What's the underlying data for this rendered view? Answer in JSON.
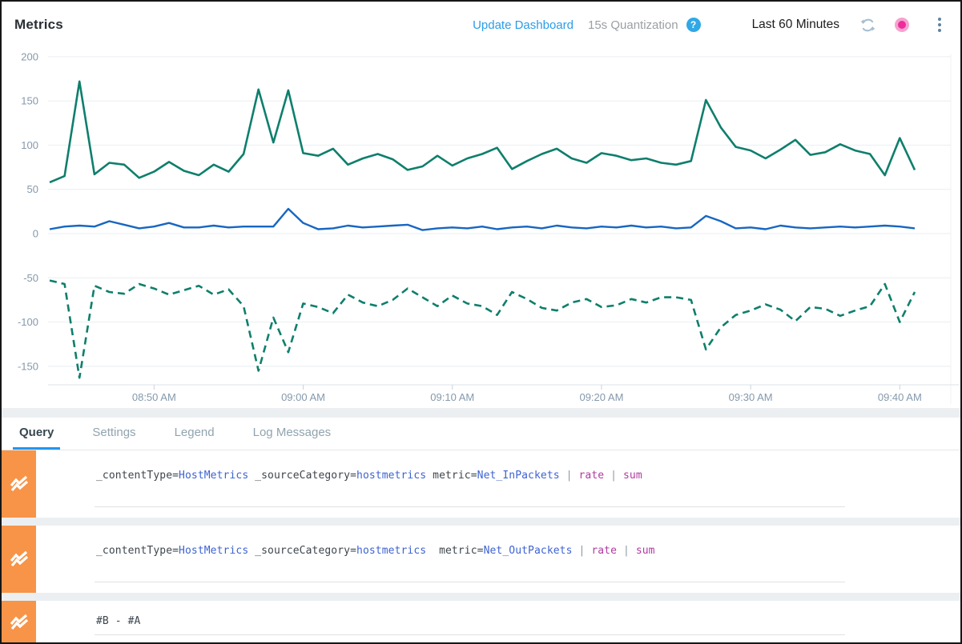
{
  "header": {
    "title": "Metrics",
    "update_dashboard": "Update Dashboard",
    "quantization": "15s Quantization",
    "help_icon": "question-mark-in-circle",
    "time_range": "Last 60 Minutes",
    "refresh_icon": "circular-refresh-arrows",
    "live_dot_icon": "pink-status-dot",
    "more_menu_icon": "vertical-kebab-dots",
    "colors": {
      "link_blue": "#2b9ce8",
      "help_blue": "#30a8e6",
      "live_pink": "#ec2d9a",
      "live_pink_ring": "#f6a2d0"
    }
  },
  "tabs": [
    {
      "label": "Query",
      "active": true
    },
    {
      "label": "Settings",
      "active": false
    },
    {
      "label": "Legend",
      "active": false
    },
    {
      "label": "Log Messages",
      "active": false
    }
  ],
  "queries": [
    {
      "icon": "metrics-zigzag",
      "icon_bg": "#f79448",
      "segments": [
        {
          "t": "_contentType=",
          "c": "plain"
        },
        {
          "t": "HostMetrics",
          "c": "value"
        },
        {
          "t": " _sourceCategory=",
          "c": "plain"
        },
        {
          "t": "hostmetrics",
          "c": "value"
        },
        {
          "t": " metric=",
          "c": "plain"
        },
        {
          "t": "Net_InPackets",
          "c": "value"
        },
        {
          "t": " | ",
          "c": "pipe"
        },
        {
          "t": "rate",
          "c": "op"
        },
        {
          "t": " | ",
          "c": "pipe"
        },
        {
          "t": "sum",
          "c": "op"
        }
      ]
    },
    {
      "icon": "metrics-zigzag",
      "icon_bg": "#f79448",
      "segments": [
        {
          "t": "_contentType=",
          "c": "plain"
        },
        {
          "t": "HostMetrics",
          "c": "value"
        },
        {
          "t": " _sourceCategory=",
          "c": "plain"
        },
        {
          "t": "hostmetrics",
          "c": "value"
        },
        {
          "t": "  metric=",
          "c": "plain"
        },
        {
          "t": "Net_OutPackets",
          "c": "value"
        },
        {
          "t": " | ",
          "c": "pipe"
        },
        {
          "t": "rate",
          "c": "op"
        },
        {
          "t": " | ",
          "c": "pipe"
        },
        {
          "t": "sum",
          "c": "op"
        }
      ]
    },
    {
      "icon": "metrics-zigzag",
      "icon_bg": "#f79448",
      "segments": [
        {
          "t": "#B - #A",
          "c": "plain"
        }
      ]
    }
  ],
  "chart_data": {
    "type": "line",
    "title": "Metrics",
    "grid": "horizontal",
    "y_ticks": [
      200,
      150,
      100,
      50,
      0,
      -50,
      -100,
      -150
    ],
    "ylim": [
      -175,
      210
    ],
    "x_tick_labels": [
      "08:50 AM",
      "09:00 AM",
      "09:10 AM",
      "09:20 AM",
      "09:30 AM",
      "09:40 AM"
    ],
    "x_tick_minute_offsets": [
      7,
      17,
      27,
      37,
      47,
      57
    ],
    "x_start": "08:43 AM",
    "x_interval_minutes": 1,
    "series": [
      {
        "id": "a",
        "name": "Net_InPackets | rate | sum",
        "style": "solid",
        "color": "#0e7f6c",
        "values": [
          58,
          65,
          172,
          67,
          80,
          78,
          63,
          70,
          81,
          71,
          66,
          78,
          70,
          90,
          163,
          103,
          162,
          91,
          88,
          96,
          78,
          85,
          90,
          84,
          72,
          76,
          88,
          77,
          85,
          90,
          97,
          73,
          82,
          90,
          96,
          85,
          80,
          91,
          88,
          83,
          85,
          80,
          78,
          82,
          151,
          120,
          98,
          94,
          85,
          95,
          106,
          89,
          92,
          101,
          94,
          90,
          66,
          108,
          72
        ]
      },
      {
        "id": "b",
        "name": "Net_OutPackets | rate | sum",
        "style": "solid",
        "color": "#1766c2",
        "values": [
          5,
          8,
          9,
          8,
          14,
          10,
          6,
          8,
          12,
          7,
          7,
          9,
          7,
          8,
          8,
          8,
          28,
          12,
          5,
          6,
          9,
          7,
          8,
          9,
          10,
          4,
          6,
          7,
          6,
          8,
          5,
          7,
          8,
          6,
          9,
          7,
          6,
          8,
          7,
          9,
          7,
          8,
          6,
          7,
          20,
          14,
          6,
          7,
          5,
          9,
          7,
          6,
          7,
          8,
          7,
          8,
          9,
          8,
          6
        ]
      },
      {
        "id": "c",
        "name": "#B - #A",
        "style": "dashed",
        "color": "#0e7f6c",
        "values": [
          -53,
          -57,
          -163,
          -59,
          -66,
          -68,
          -57,
          -62,
          -69,
          -64,
          -59,
          -69,
          -63,
          -82,
          -155,
          -95,
          -134,
          -79,
          -83,
          -90,
          -69,
          -78,
          -82,
          -75,
          -62,
          -72,
          -82,
          -70,
          -79,
          -82,
          -92,
          -66,
          -74,
          -84,
          -87,
          -78,
          -74,
          -83,
          -81,
          -74,
          -78,
          -72,
          -72,
          -75,
          -131,
          -106,
          -92,
          -87,
          -80,
          -86,
          -99,
          -83,
          -85,
          -93,
          -87,
          -82,
          -57,
          -100,
          -66
        ]
      }
    ],
    "axis_label_color": "#8599ac",
    "gridline_color": "#e9eef3"
  }
}
